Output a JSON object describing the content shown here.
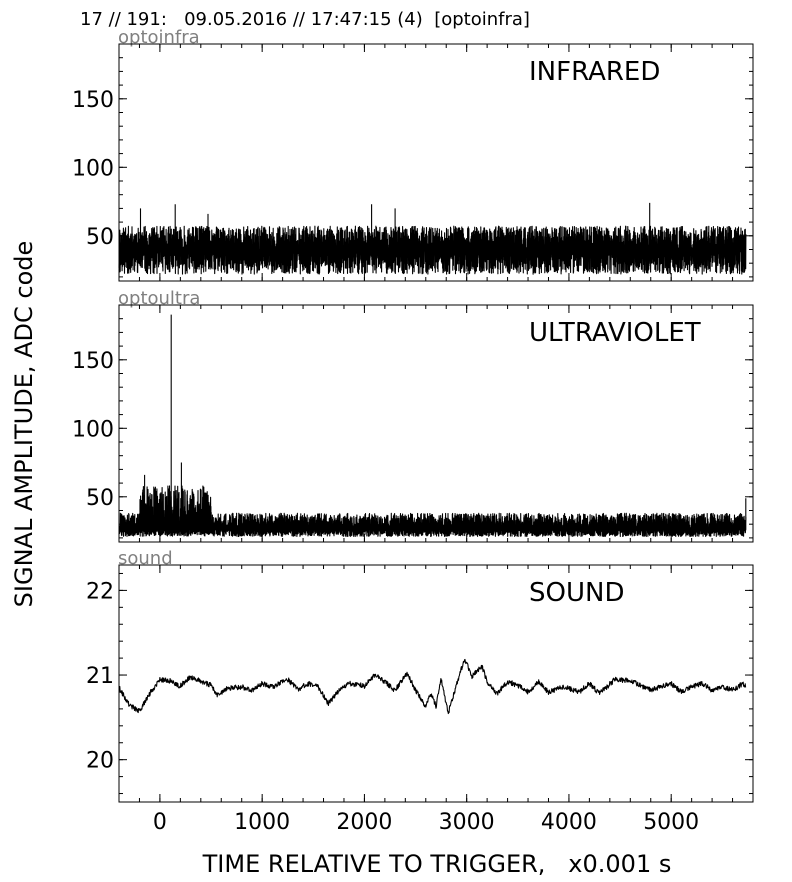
{
  "header": {
    "title": "17 // 191:   09.05.2016 // 17:47:15 (4)  [optoinfra]"
  },
  "axes": {
    "ylabel": "SIGNAL AMPLITUDE,  ADC code",
    "xlabel": "TIME RELATIVE TO TRIGGER,   x0.001 s"
  },
  "chart_data": [
    {
      "type": "line",
      "channel": "optoinfra",
      "title": "INFRARED",
      "xlim": [
        -400,
        5800
      ],
      "ylim": [
        17,
        190
      ],
      "xticks": [
        0,
        1000,
        2000,
        3000,
        4000,
        5000
      ],
      "xtick_labels": [
        "",
        "",
        "",
        "",
        "",
        ""
      ],
      "yticks": [
        50,
        100,
        150
      ],
      "ytick_labels": [
        "50",
        "100",
        "150"
      ],
      "line_color": "#000000",
      "trace": {
        "x_start": -400,
        "x_end": 5730,
        "baseline": 38,
        "noise_low": 22,
        "noise_high": 57,
        "spikes": [
          {
            "x": -190,
            "y": 70
          },
          {
            "x": 150,
            "y": 73
          },
          {
            "x": 470,
            "y": 66
          },
          {
            "x": 2070,
            "y": 73
          },
          {
            "x": 2300,
            "y": 70
          },
          {
            "x": 4790,
            "y": 74
          }
        ]
      }
    },
    {
      "type": "line",
      "channel": "optoultra",
      "title": "ULTRAVIOLET",
      "xlim": [
        -400,
        5800
      ],
      "ylim": [
        17,
        190
      ],
      "xticks": [
        0,
        1000,
        2000,
        3000,
        4000,
        5000
      ],
      "xtick_labels": [
        "",
        "",
        "",
        "",
        "",
        ""
      ],
      "yticks": [
        50,
        100,
        150
      ],
      "ytick_labels": [
        "50",
        "100",
        "150"
      ],
      "line_color": "#000000",
      "trace": {
        "x_start": -400,
        "x_end": 5730,
        "baseline": 26,
        "noise_low": 21,
        "noise_high": 38,
        "burst_start": -200,
        "burst_end": 500,
        "burst_high": 58,
        "spikes": [
          {
            "x": -150,
            "y": 66
          },
          {
            "x": 110,
            "y": 183
          },
          {
            "x": 210,
            "y": 75
          },
          {
            "x": 420,
            "y": 55
          },
          {
            "x": 5730,
            "y": 49
          }
        ]
      }
    },
    {
      "type": "line",
      "channel": "sound",
      "title": "SOUND",
      "xlim": [
        -400,
        5800
      ],
      "ylim": [
        19.5,
        22.3
      ],
      "xticks": [
        0,
        1000,
        2000,
        3000,
        4000,
        5000
      ],
      "xtick_labels": [
        "0",
        "1000",
        "2000",
        "3000",
        "4000",
        "5000"
      ],
      "yticks": [
        20,
        21,
        22
      ],
      "ytick_labels": [
        "20",
        "21",
        "22"
      ],
      "line_color": "#000000",
      "trace": {
        "x_start": -400,
        "x_end": 5730,
        "points": [
          [
            -400,
            20.85
          ],
          [
            -300,
            20.65
          ],
          [
            -200,
            20.57
          ],
          [
            -100,
            20.78
          ],
          [
            0,
            20.95
          ],
          [
            100,
            20.93
          ],
          [
            200,
            20.87
          ],
          [
            300,
            20.98
          ],
          [
            400,
            20.93
          ],
          [
            500,
            20.88
          ],
          [
            560,
            20.76
          ],
          [
            650,
            20.84
          ],
          [
            800,
            20.86
          ],
          [
            900,
            20.82
          ],
          [
            1000,
            20.9
          ],
          [
            1100,
            20.86
          ],
          [
            1250,
            20.95
          ],
          [
            1350,
            20.83
          ],
          [
            1450,
            20.9
          ],
          [
            1550,
            20.86
          ],
          [
            1650,
            20.66
          ],
          [
            1750,
            20.82
          ],
          [
            1850,
            20.9
          ],
          [
            2000,
            20.87
          ],
          [
            2100,
            21.0
          ],
          [
            2200,
            20.92
          ],
          [
            2300,
            20.82
          ],
          [
            2420,
            21.02
          ],
          [
            2500,
            20.82
          ],
          [
            2600,
            20.63
          ],
          [
            2650,
            20.78
          ],
          [
            2700,
            20.63
          ],
          [
            2750,
            20.95
          ],
          [
            2820,
            20.55
          ],
          [
            2900,
            20.88
          ],
          [
            2980,
            21.2
          ],
          [
            3050,
            20.98
          ],
          [
            3150,
            21.1
          ],
          [
            3200,
            20.92
          ],
          [
            3300,
            20.78
          ],
          [
            3400,
            20.92
          ],
          [
            3500,
            20.88
          ],
          [
            3600,
            20.8
          ],
          [
            3700,
            20.92
          ],
          [
            3800,
            20.8
          ],
          [
            3950,
            20.86
          ],
          [
            4100,
            20.8
          ],
          [
            4200,
            20.9
          ],
          [
            4300,
            20.78
          ],
          [
            4450,
            20.95
          ],
          [
            4600,
            20.93
          ],
          [
            4700,
            20.88
          ],
          [
            4800,
            20.82
          ],
          [
            4900,
            20.86
          ],
          [
            5000,
            20.9
          ],
          [
            5100,
            20.8
          ],
          [
            5200,
            20.86
          ],
          [
            5300,
            20.9
          ],
          [
            5400,
            20.82
          ],
          [
            5500,
            20.86
          ],
          [
            5600,
            20.82
          ],
          [
            5700,
            20.9
          ],
          [
            5730,
            20.86
          ]
        ],
        "jitter": 0.03
      }
    }
  ]
}
